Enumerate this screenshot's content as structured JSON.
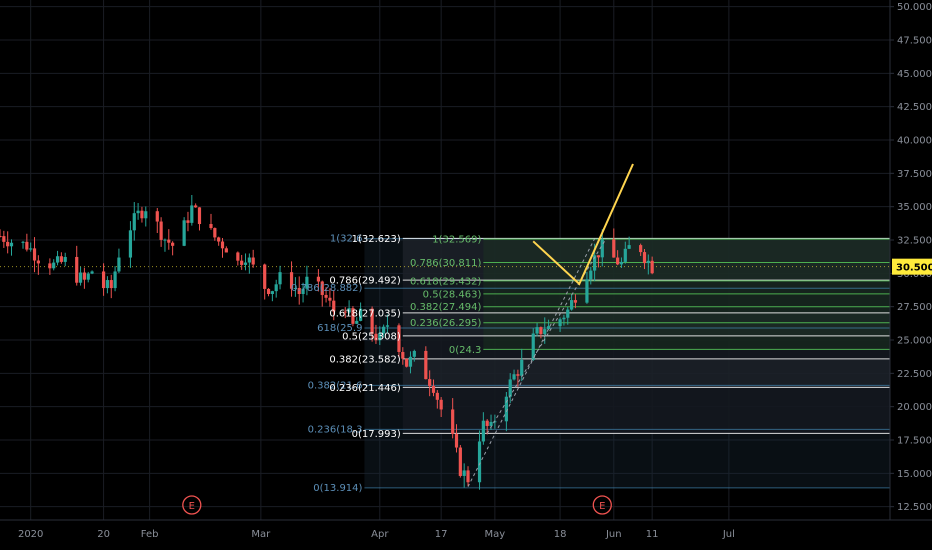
{
  "colors": {
    "background": "#000000",
    "grid": "#1a1d24",
    "up_candle": "#26a69a",
    "down_candle": "#ef5350",
    "axis_text": "#8a8f99",
    "fib_green": "#4caf50",
    "fib_white": "#ffffff",
    "projection_line": "#ffd54f",
    "price_tag_bg": "#ffeb3b",
    "event_marker": "#ef5350"
  },
  "current_price": "30.500",
  "event_markers": [
    {
      "label": "E",
      "date": "2020-02-12"
    },
    {
      "label": "E",
      "date": "2020-05-29"
    }
  ],
  "chart_data": {
    "type": "candlestick",
    "title": "",
    "xlabel": "",
    "ylabel": "",
    "ylim": [
      11.5,
      50.5
    ],
    "xlim": [
      "2019-12-24",
      "2020-08-12"
    ],
    "yticks": [
      "12.500",
      "15.000",
      "17.500",
      "20.000",
      "22.500",
      "25.000",
      "27.500",
      "30.000",
      "32.500",
      "35.000",
      "37.500",
      "40.000",
      "42.500",
      "45.000",
      "47.500",
      "50.000"
    ],
    "xticks": [
      {
        "label": "2020",
        "date": "2020-01-01"
      },
      {
        "label": "20",
        "date": "2020-01-20"
      },
      {
        "label": "Feb",
        "date": "2020-02-01"
      },
      {
        "label": "Mar",
        "date": "2020-03-01"
      },
      {
        "label": "Apr",
        "date": "2020-04-01"
      },
      {
        "label": "17",
        "date": "2020-04-17"
      },
      {
        "label": "May",
        "date": "2020-05-01"
      },
      {
        "label": "18",
        "date": "2020-05-18"
      },
      {
        "label": "Jun",
        "date": "2020-06-01"
      },
      {
        "label": "11",
        "date": "2020-06-11"
      },
      {
        "label": "Jul",
        "date": "2020-07-01"
      }
    ],
    "grid": true,
    "price_path": [
      [
        "2019-12-24",
        32.8
      ],
      [
        "2019-12-27",
        32.4
      ],
      [
        "2019-12-31",
        32.1
      ],
      [
        "2020-01-03",
        31.2
      ],
      [
        "2020-01-07",
        30.6
      ],
      [
        "2020-01-10",
        30.9
      ],
      [
        "2020-01-13",
        29.8
      ],
      [
        "2020-01-15",
        29.4
      ],
      [
        "2020-01-17",
        30.2
      ],
      [
        "2020-01-20",
        29.0
      ],
      [
        "2020-01-22",
        28.9
      ],
      [
        "2020-01-24",
        31.5
      ],
      [
        "2020-01-27",
        33.5
      ],
      [
        "2020-01-29",
        34.4
      ],
      [
        "2020-01-31",
        35.0
      ],
      [
        "2020-02-03",
        33.6
      ],
      [
        "2020-02-05",
        32.6
      ],
      [
        "2020-02-07",
        32.1
      ],
      [
        "2020-02-10",
        33.5
      ],
      [
        "2020-02-12",
        34.9
      ],
      [
        "2020-02-14",
        34.2
      ],
      [
        "2020-02-17",
        33.0
      ],
      [
        "2020-02-19",
        32.4
      ],
      [
        "2020-02-21",
        32.0
      ],
      [
        "2020-02-24",
        30.8
      ],
      [
        "2020-02-26",
        31.4
      ],
      [
        "2020-02-28",
        30.4
      ],
      [
        "2020-03-02",
        29.0
      ],
      [
        "2020-03-04",
        28.9
      ],
      [
        "2020-03-06",
        29.6
      ],
      [
        "2020-03-09",
        29.3
      ],
      [
        "2020-03-11",
        28.5
      ],
      [
        "2020-03-13",
        29.4
      ],
      [
        "2020-03-16",
        28.8
      ],
      [
        "2020-03-18",
        28.1
      ],
      [
        "2020-03-20",
        27.2
      ],
      [
        "2020-03-23",
        27.6
      ],
      [
        "2020-03-25",
        26.0
      ],
      [
        "2020-03-27",
        26.8
      ],
      [
        "2020-03-30",
        25.6
      ],
      [
        "2020-04-01",
        25.0
      ],
      [
        "2020-04-03",
        26.2
      ],
      [
        "2020-04-06",
        24.6
      ],
      [
        "2020-04-08",
        23.2
      ],
      [
        "2020-04-10",
        23.7
      ],
      [
        "2020-04-13",
        22.4
      ],
      [
        "2020-04-15",
        21.6
      ],
      [
        "2020-04-17",
        19.8
      ],
      [
        "2020-04-20",
        17.5
      ],
      [
        "2020-04-22",
        15.3
      ],
      [
        "2020-04-24",
        14.6
      ],
      [
        "2020-04-26",
        17.0
      ],
      [
        "2020-04-28",
        18.6
      ],
      [
        "2020-04-30",
        18.3
      ],
      [
        "2020-05-02",
        19.9
      ],
      [
        "2020-05-04",
        21.2
      ],
      [
        "2020-05-06",
        22.3
      ],
      [
        "2020-05-08",
        23.2
      ],
      [
        "2020-05-10",
        24.6
      ],
      [
        "2020-05-12",
        25.5
      ],
      [
        "2020-05-14",
        26.0
      ],
      [
        "2020-05-16",
        25.8
      ],
      [
        "2020-05-18",
        26.6
      ],
      [
        "2020-05-20",
        27.2
      ],
      [
        "2020-05-22",
        28.4
      ],
      [
        "2020-05-24",
        29.6
      ],
      [
        "2020-05-26",
        30.7
      ],
      [
        "2020-05-28",
        31.6
      ],
      [
        "2020-05-30",
        32.3
      ],
      [
        "2020-06-01",
        31.1
      ],
      [
        "2020-06-03",
        30.7
      ],
      [
        "2020-06-05",
        31.9
      ],
      [
        "2020-06-07",
        32.5
      ],
      [
        "2020-06-09",
        31.3
      ],
      [
        "2020-06-11",
        30.5
      ]
    ],
    "fib_retracements": [
      {
        "name": "fib-down",
        "levels": [
          {
            "label": "1(32.623)",
            "value": 32.623
          },
          {
            "label": "0.786(29.492)",
            "value": 29.492
          },
          {
            "label": "0.618(27.035)",
            "value": 27.035
          },
          {
            "label": "0.5(25.308)",
            "value": 25.308
          },
          {
            "label": "0.382(23.582)",
            "value": 23.582
          },
          {
            "label": "0.236(21.446)",
            "value": 21.446
          },
          {
            "label": "0(17.993)",
            "value": 17.993
          }
        ]
      },
      {
        "name": "fib-up",
        "levels": [
          {
            "label": "1(32.569)",
            "value": 32.569
          },
          {
            "label": "0.786(30.811)",
            "value": 30.811
          },
          {
            "label": "0.618(29.432)",
            "value": 29.432
          },
          {
            "label": "0.5(28.463)",
            "value": 28.463
          },
          {
            "label": "0.382(27.494)",
            "value": 27.494
          },
          {
            "label": "0.236(26.295)",
            "value": 26.295
          },
          {
            "label": "0(24.3",
            "value": 24.3
          }
        ]
      },
      {
        "name": "fib-faded",
        "levels": [
          {
            "label": "1(32.6",
            "value": 32.6
          },
          {
            "label": "0.786(28.882)",
            "value": 28.882
          },
          {
            "label": "618(25.9",
            "value": 25.9
          },
          {
            "label": "0.382(21.6",
            "value": 21.6
          },
          {
            "label": "0.236(18.3",
            "value": 18.3
          },
          {
            "label": "0(13.914)",
            "value": 13.914
          }
        ]
      }
    ],
    "projection_path": [
      [
        "2020-05-11",
        32.4
      ],
      [
        "2020-05-23",
        29.2
      ],
      [
        "2020-06-06",
        38.2
      ]
    ]
  }
}
